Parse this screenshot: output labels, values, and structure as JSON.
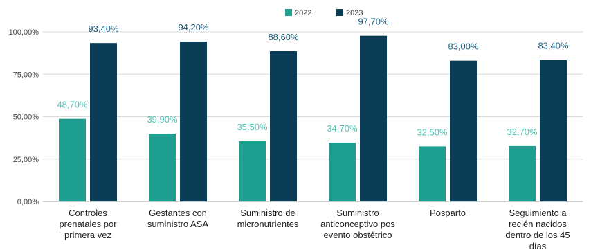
{
  "chart_data": {
    "type": "bar",
    "categories": [
      [
        "Controles",
        "prenatales por",
        "primera vez"
      ],
      [
        "Gestantes con",
        "suministro ASA"
      ],
      [
        "Suministro de",
        "micronutrientes"
      ],
      [
        "Suministro",
        "anticonceptivo pos",
        "evento obstétrico"
      ],
      [
        "Posparto"
      ],
      [
        "Seguimiento a",
        "recién nacidos",
        "dentro de los 45",
        "días"
      ]
    ],
    "series": [
      {
        "name": "2022",
        "color": "#1e9e8e",
        "label_color": "#4fc2b4",
        "values": [
          48.7,
          39.9,
          35.5,
          34.7,
          32.5,
          32.7
        ],
        "labels": [
          "48,70%",
          "39,90%",
          "35,50%",
          "34,70%",
          "32,50%",
          "32,70%"
        ]
      },
      {
        "name": "2023",
        "color": "#0b3d57",
        "label_color": "#1b5f7e",
        "values": [
          93.4,
          94.2,
          88.6,
          97.7,
          83.0,
          83.4
        ],
        "labels": [
          "93,40%",
          "94,20%",
          "88,60%",
          "97,70%",
          "83,00%",
          "83,40%"
        ]
      }
    ],
    "y_ticks": [
      "0,00%",
      "25,00%",
      "50,00%",
      "75,00%",
      "100,00%"
    ],
    "y_tick_values": [
      0,
      25,
      50,
      75,
      100
    ],
    "ylim": [
      0,
      100
    ],
    "grid": true,
    "legend_position": "top"
  }
}
